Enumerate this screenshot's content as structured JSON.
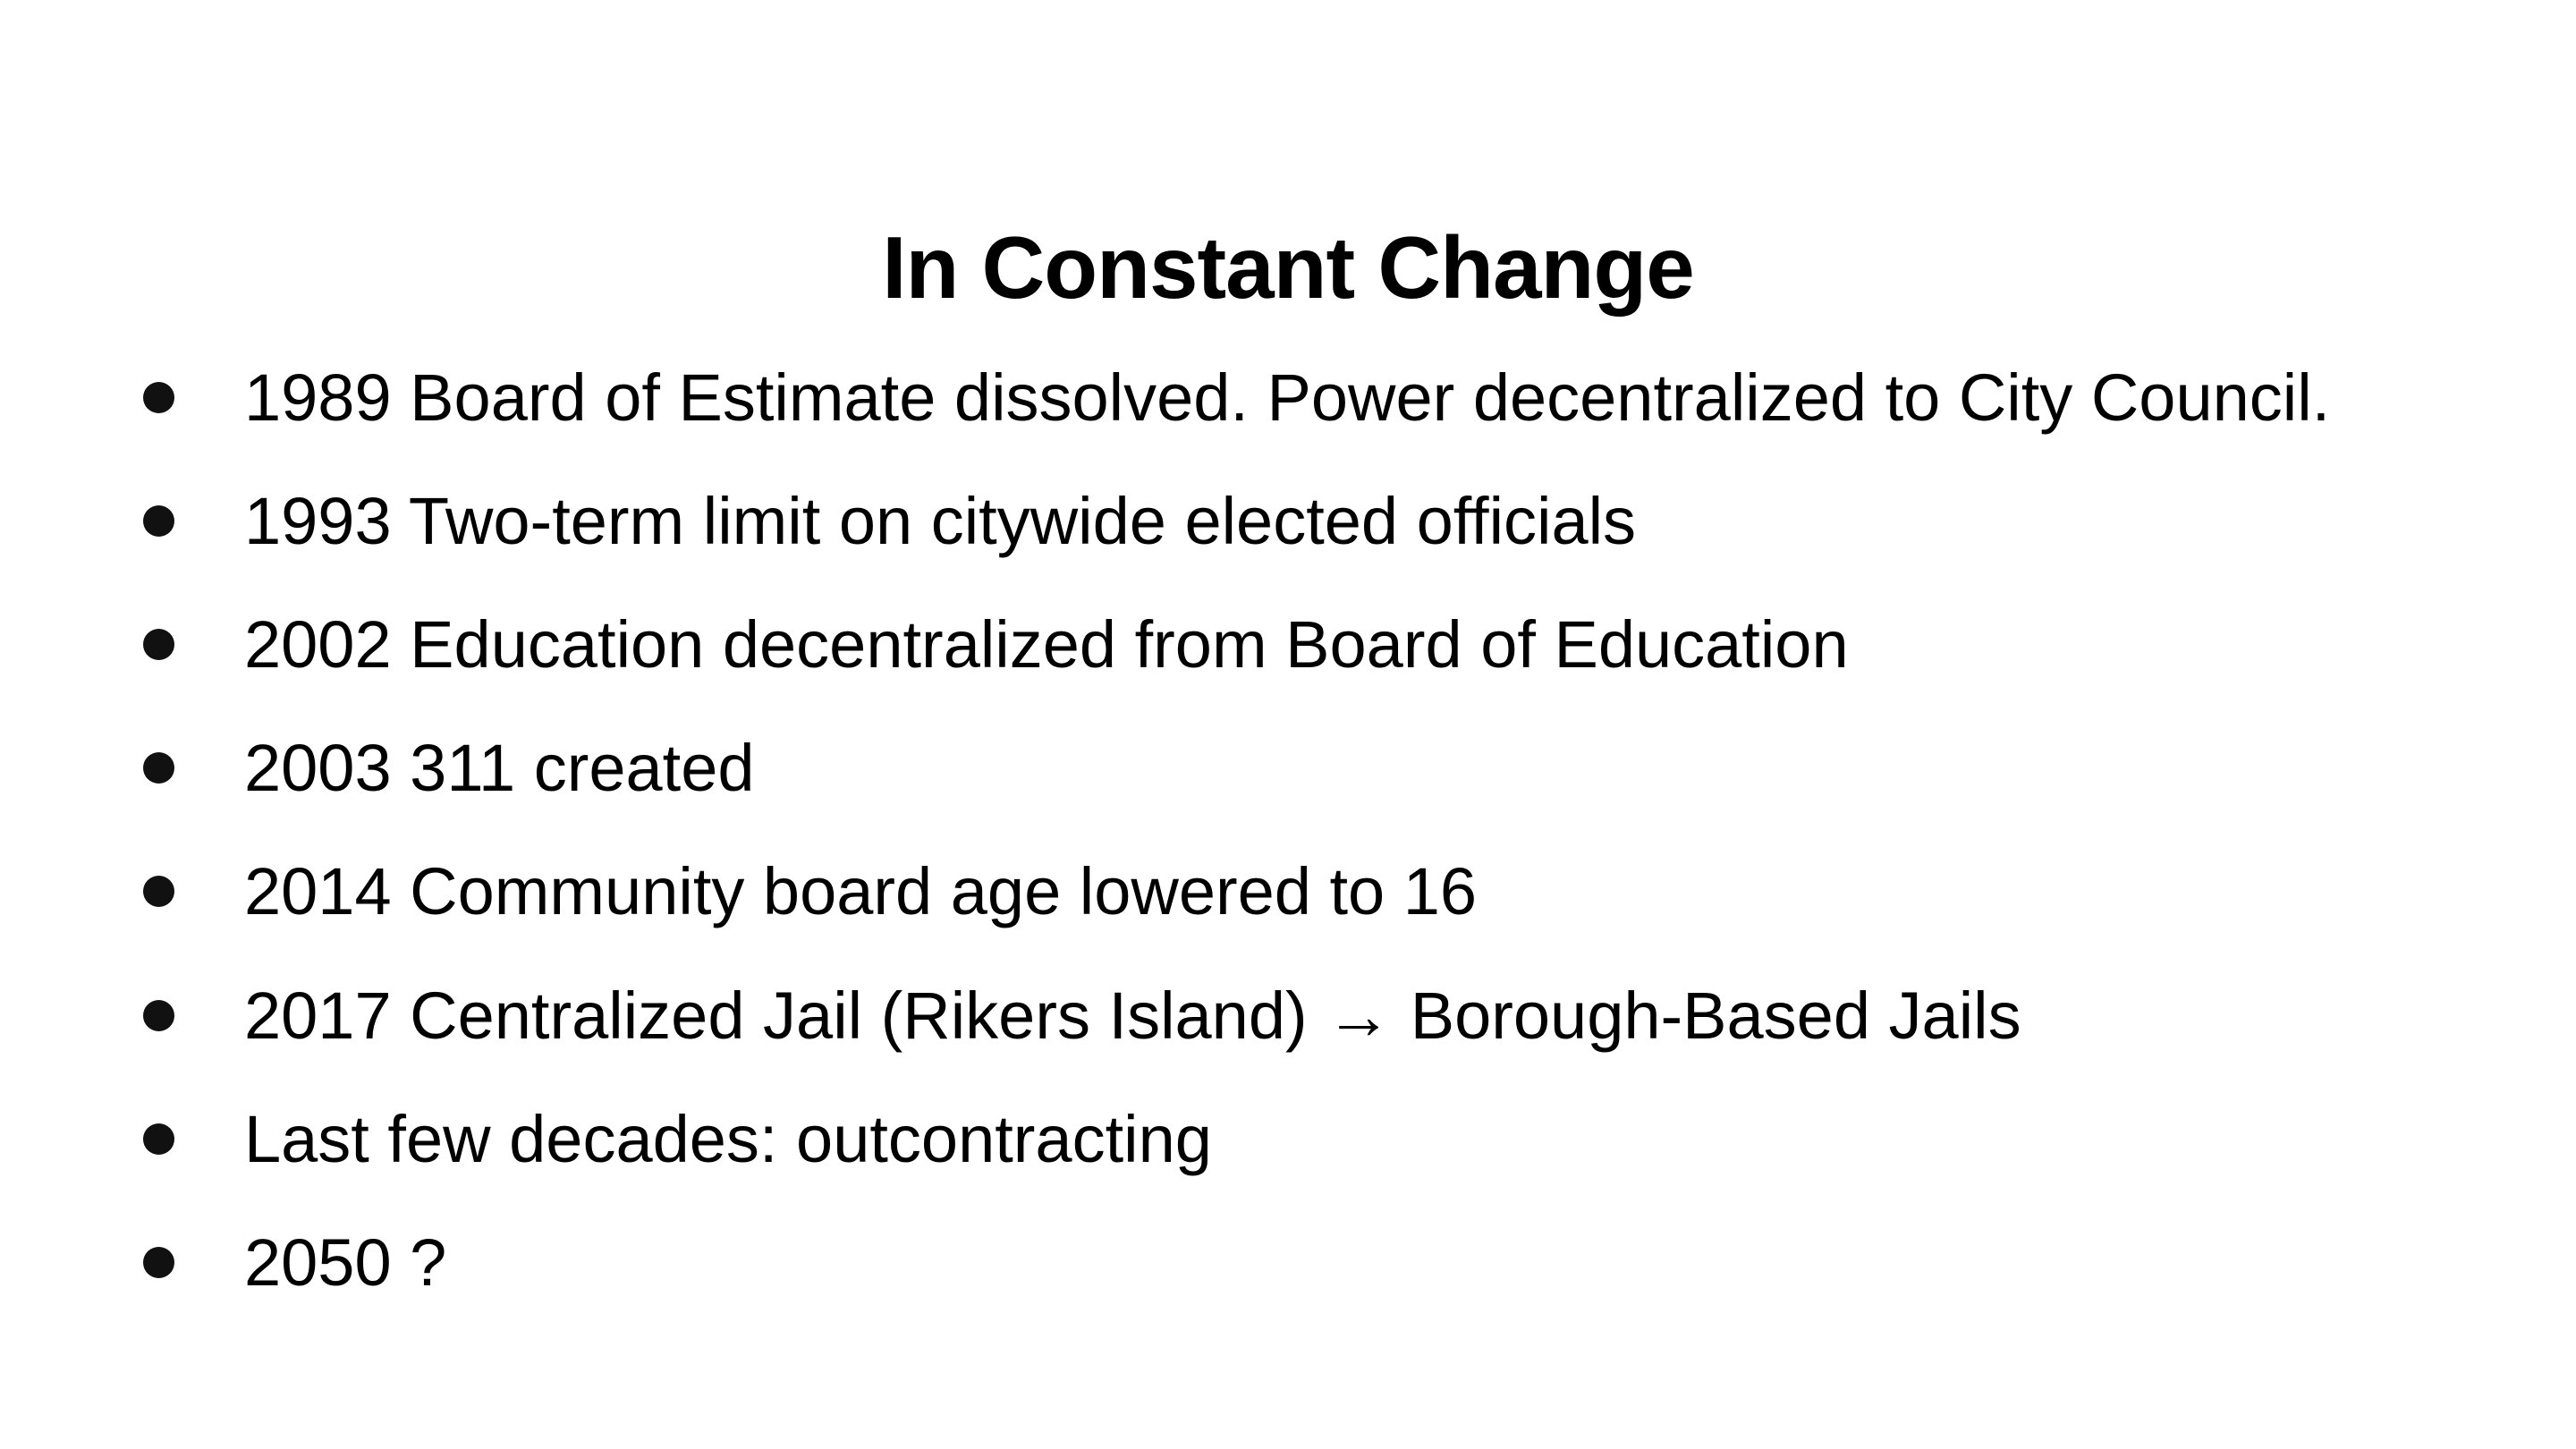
{
  "slide": {
    "title": "In Constant Change",
    "bullets": [
      "1989 Board of Estimate dissolved. Power decentralized to City Council.",
      "1993 Two-term limit on citywide elected officials",
      "2002 Education decentralized from Board of Education",
      "2003 311 created",
      "2014 Community board age lowered to 16",
      "2017 Centralized Jail (Rikers Island) → Borough-Based Jails",
      "Last few decades: outcontracting",
      "2050 ?"
    ]
  },
  "colors": {
    "background": "#ffffff",
    "text": "#000000"
  }
}
